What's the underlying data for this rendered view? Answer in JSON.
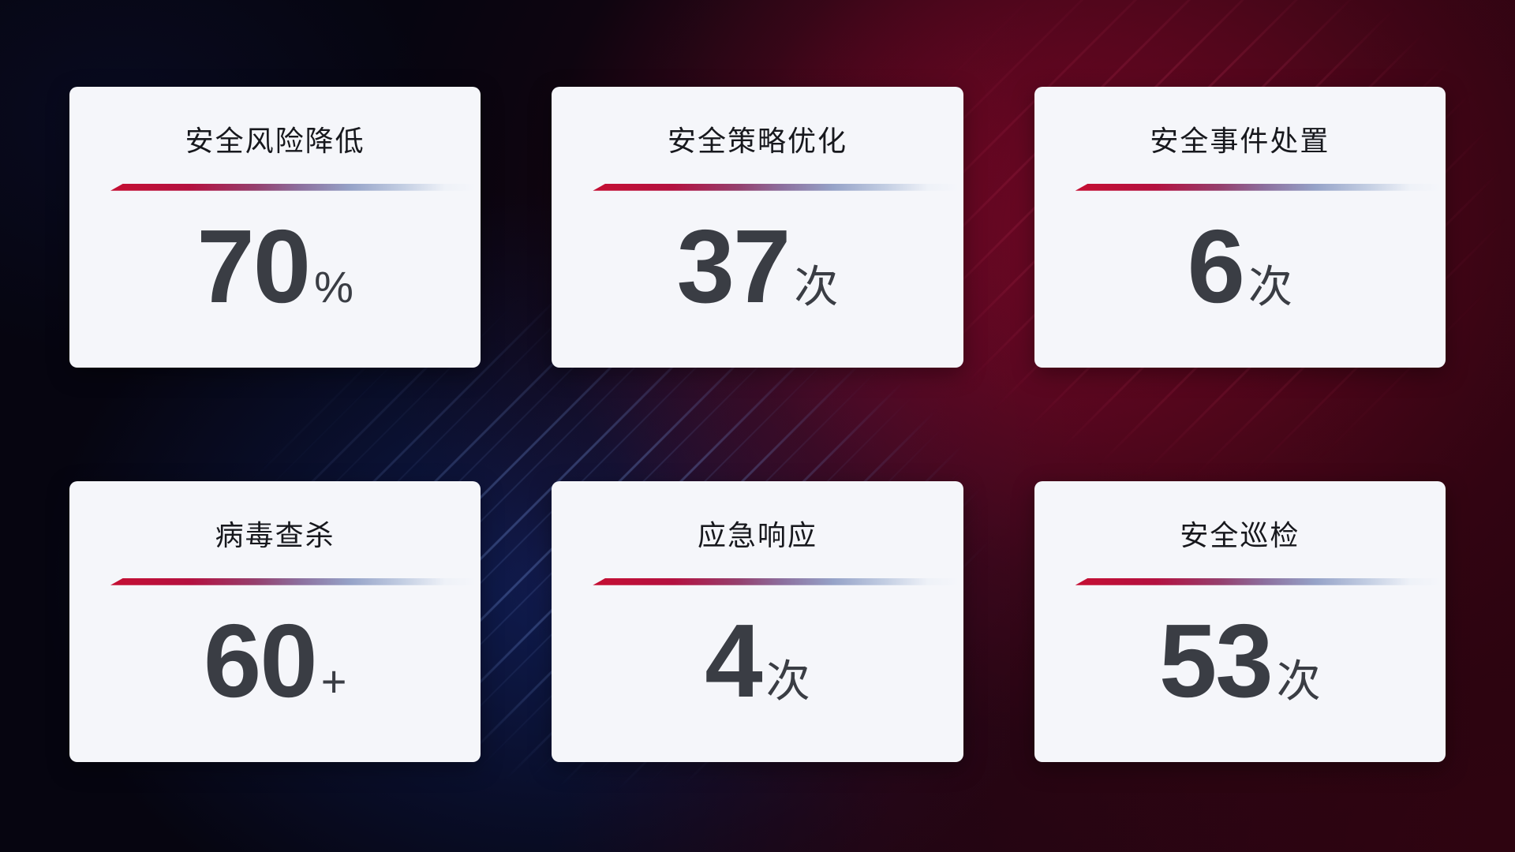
{
  "theme": {
    "background_base": "#060510",
    "accent_red": "#c40e32",
    "accent_blue": "#16275c",
    "card_background": "#f5f6fa",
    "title_color": "#17181d",
    "value_color": "#3a3d44",
    "divider_start": "#c50f33"
  },
  "cards": [
    {
      "title": "安全风险降低",
      "value": "70",
      "unit": "%"
    },
    {
      "title": "安全策略优化",
      "value": "37",
      "unit": "次"
    },
    {
      "title": "安全事件处置",
      "value": "6",
      "unit": "次"
    },
    {
      "title": "病毒查杀",
      "value": "60",
      "unit": "+"
    },
    {
      "title": "应急响应",
      "value": "4",
      "unit": "次"
    },
    {
      "title": "安全巡检",
      "value": "53",
      "unit": "次"
    }
  ]
}
